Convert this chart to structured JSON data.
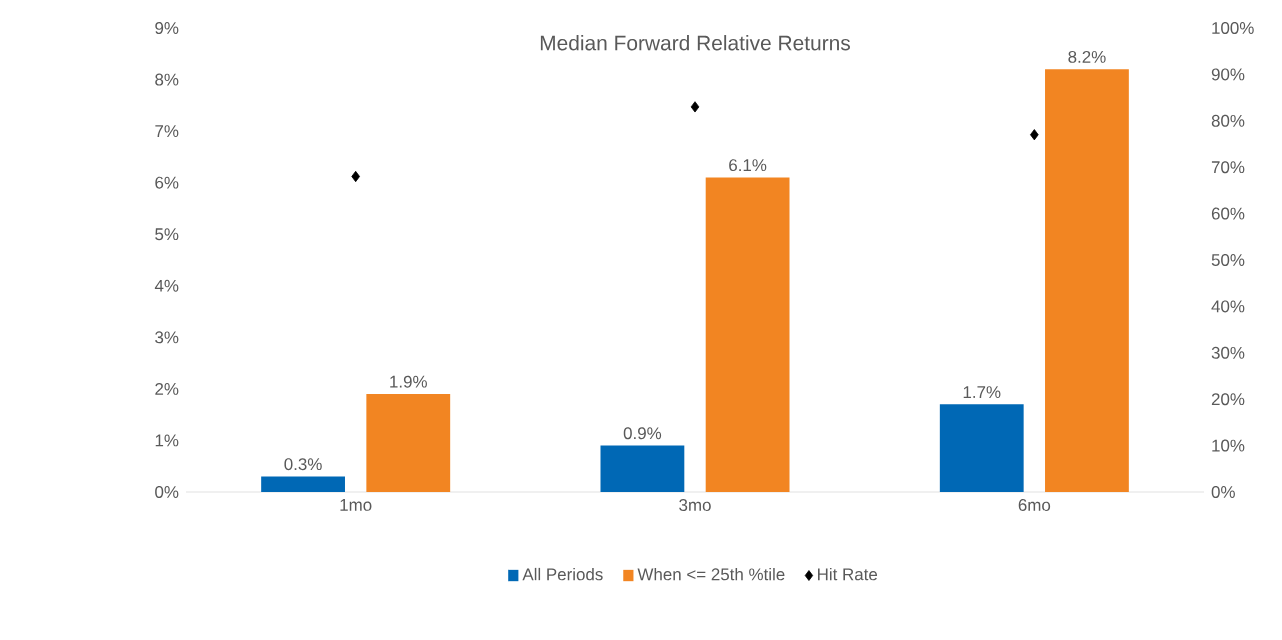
{
  "chart_data": {
    "type": "bar",
    "title": "Median Forward Relative Returns",
    "categories": [
      "1mo",
      "3mo",
      "6mo"
    ],
    "series": [
      {
        "name": "All Periods",
        "color": "#0068b5",
        "values": [
          0.3,
          0.9,
          1.7
        ],
        "value_labels": [
          "0.3%",
          "0.9%",
          "1.7%"
        ]
      },
      {
        "name": "When <= 25th %tile",
        "color": "#f28522",
        "values": [
          1.9,
          6.1,
          8.2
        ],
        "value_labels": [
          "1.9%",
          "6.1%",
          "8.2%"
        ]
      },
      {
        "name": "Hit Rate",
        "type": "scatter",
        "axis": "y2",
        "color": "#000000",
        "marker": "diamond",
        "values": [
          68,
          83,
          77
        ]
      }
    ],
    "ylim": [
      0,
      9
    ],
    "yticks": [
      {
        "value": 0,
        "label": "0%"
      },
      {
        "value": 1,
        "label": "1%"
      },
      {
        "value": 2,
        "label": "2%"
      },
      {
        "value": 3,
        "label": "3%"
      },
      {
        "value": 4,
        "label": "4%"
      },
      {
        "value": 5,
        "label": "5%"
      },
      {
        "value": 6,
        "label": "6%"
      },
      {
        "value": 7,
        "label": "7%"
      },
      {
        "value": 8,
        "label": "8%"
      },
      {
        "value": 9,
        "label": "9%"
      }
    ],
    "y2lim": [
      0,
      100
    ],
    "y2ticks": [
      {
        "value": 0,
        "label": "0%"
      },
      {
        "value": 10,
        "label": "10%"
      },
      {
        "value": 20,
        "label": "20%"
      },
      {
        "value": 30,
        "label": "30%"
      },
      {
        "value": 40,
        "label": "40%"
      },
      {
        "value": 50,
        "label": "50%"
      },
      {
        "value": 60,
        "label": "60%"
      },
      {
        "value": 70,
        "label": "70%"
      },
      {
        "value": 80,
        "label": "80%"
      },
      {
        "value": 90,
        "label": "90%"
      },
      {
        "value": 100,
        "label": "100%"
      }
    ],
    "legend": "bottom",
    "grid": false
  }
}
